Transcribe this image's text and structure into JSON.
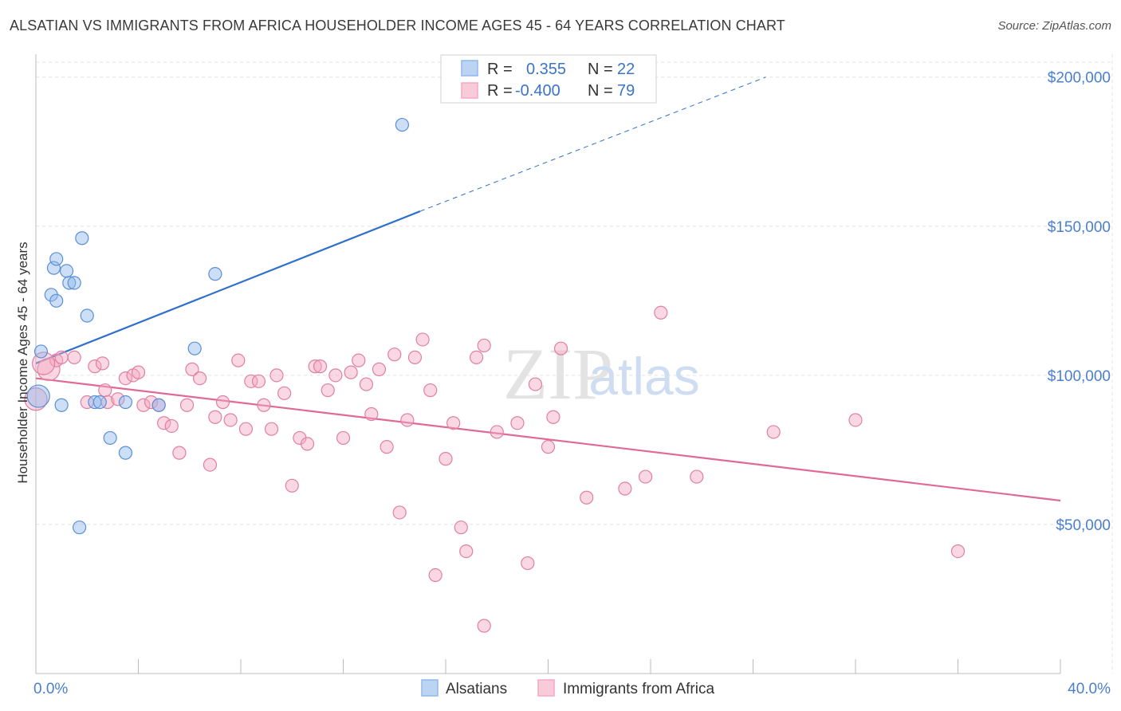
{
  "header": {
    "title": "ALSATIAN VS IMMIGRANTS FROM AFRICA HOUSEHOLDER INCOME AGES 45 - 64 YEARS CORRELATION CHART",
    "source": "Source: ZipAtlas.com"
  },
  "watermark": {
    "zip": "ZIP",
    "atlas": "atlas"
  },
  "legend_box": {
    "rows": [
      {
        "r_label": "R =",
        "r_value": "0.355",
        "n_label": "N =",
        "n_value": "22",
        "color": "#8fb8ea"
      },
      {
        "r_label": "R =",
        "r_value": "-0.400",
        "n_label": "N =",
        "n_value": "79",
        "color": "#f4a9c1"
      }
    ]
  },
  "chart_data": {
    "type": "scatter",
    "title": "ALSATIAN VS IMMIGRANTS FROM AFRICA HOUSEHOLDER INCOME AGES 45 - 64 YEARS CORRELATION CHART",
    "xlabel": "",
    "ylabel": "Householder Income Ages 45 - 64 years",
    "xlim": [
      0,
      40
    ],
    "ylim": [
      0,
      205000
    ],
    "x_tick_labels": [
      "0.0%",
      "40.0%"
    ],
    "y_ticks": [
      {
        "value": 50000,
        "label": "$50,000"
      },
      {
        "value": 100000,
        "label": "$100,000"
      },
      {
        "value": 150000,
        "label": "$150,000"
      },
      {
        "value": 200000,
        "label": "$200,000"
      }
    ],
    "grid": true,
    "legend_position": "bottom",
    "series": [
      {
        "name": "Alsatians",
        "color": "#8fb8ea",
        "stroke": "#5b8fd6",
        "trend": {
          "x1": 0,
          "y1": 104000,
          "x2": 15,
          "y2": 155000,
          "dash_to_x": 28.5,
          "dash_to_y": 200000,
          "color": "#2f6fcc"
        },
        "points": [
          [
            0.2,
            108000
          ],
          [
            0.6,
            127000
          ],
          [
            0.7,
            136000
          ],
          [
            0.8,
            139000
          ],
          [
            0.8,
            125000
          ],
          [
            1.2,
            135000
          ],
          [
            1.3,
            131000
          ],
          [
            1.5,
            131000
          ],
          [
            1.8,
            146000
          ],
          [
            2.0,
            120000
          ],
          [
            2.3,
            91000
          ],
          [
            2.5,
            91000
          ],
          [
            2.9,
            79000
          ],
          [
            3.5,
            74000
          ],
          [
            3.5,
            91000
          ],
          [
            4.8,
            90000
          ],
          [
            6.2,
            109000
          ],
          [
            7.0,
            134000
          ],
          [
            14.3,
            184000
          ],
          [
            1.7,
            49000
          ],
          [
            0.1,
            93000
          ],
          [
            1.0,
            90000
          ]
        ]
      },
      {
        "name": "Immigrants from Africa",
        "color": "#f4a9c1",
        "stroke": "#e17fa3",
        "trend": {
          "x1": 0,
          "y1": 99000,
          "x2": 40,
          "y2": 58000,
          "color": "#e06a96"
        },
        "points": [
          [
            0.0,
            92000
          ],
          [
            0.5,
            102000
          ],
          [
            0.8,
            105000
          ],
          [
            1.0,
            106000
          ],
          [
            1.5,
            106000
          ],
          [
            2.0,
            91000
          ],
          [
            2.3,
            103000
          ],
          [
            2.6,
            104000
          ],
          [
            2.7,
            95000
          ],
          [
            2.8,
            91000
          ],
          [
            3.2,
            92000
          ],
          [
            3.5,
            99000
          ],
          [
            3.8,
            100000
          ],
          [
            4.0,
            101000
          ],
          [
            4.2,
            90000
          ],
          [
            4.5,
            91000
          ],
          [
            4.8,
            90000
          ],
          [
            5.0,
            84000
          ],
          [
            5.3,
            83000
          ],
          [
            5.6,
            74000
          ],
          [
            5.9,
            90000
          ],
          [
            6.1,
            102000
          ],
          [
            6.4,
            99000
          ],
          [
            6.8,
            70000
          ],
          [
            7.0,
            86000
          ],
          [
            7.3,
            91000
          ],
          [
            7.6,
            85000
          ],
          [
            7.9,
            105000
          ],
          [
            8.2,
            82000
          ],
          [
            8.4,
            98000
          ],
          [
            8.7,
            98000
          ],
          [
            8.9,
            90000
          ],
          [
            9.2,
            82000
          ],
          [
            9.4,
            100000
          ],
          [
            9.7,
            94000
          ],
          [
            10.0,
            63000
          ],
          [
            10.3,
            79000
          ],
          [
            10.6,
            77000
          ],
          [
            10.9,
            103000
          ],
          [
            11.1,
            103000
          ],
          [
            11.4,
            95000
          ],
          [
            11.7,
            100000
          ],
          [
            12.0,
            79000
          ],
          [
            12.3,
            101000
          ],
          [
            12.6,
            105000
          ],
          [
            12.9,
            97000
          ],
          [
            13.1,
            87000
          ],
          [
            13.4,
            102000
          ],
          [
            13.7,
            76000
          ],
          [
            14.0,
            107000
          ],
          [
            14.2,
            54000
          ],
          [
            14.5,
            85000
          ],
          [
            14.8,
            106000
          ],
          [
            15.1,
            112000
          ],
          [
            15.4,
            95000
          ],
          [
            15.6,
            33000
          ],
          [
            16.0,
            72000
          ],
          [
            16.3,
            84000
          ],
          [
            16.6,
            49000
          ],
          [
            16.8,
            41000
          ],
          [
            17.2,
            106000
          ],
          [
            17.5,
            110000
          ],
          [
            17.5,
            16000
          ],
          [
            18.0,
            81000
          ],
          [
            18.8,
            84000
          ],
          [
            19.2,
            37000
          ],
          [
            19.5,
            97000
          ],
          [
            20.0,
            76000
          ],
          [
            20.2,
            86000
          ],
          [
            20.5,
            109000
          ],
          [
            21.5,
            59000
          ],
          [
            23.0,
            62000
          ],
          [
            23.8,
            66000
          ],
          [
            24.4,
            121000
          ],
          [
            25.8,
            66000
          ],
          [
            28.8,
            81000
          ],
          [
            32.0,
            85000
          ],
          [
            36.0,
            41000
          ],
          [
            0.3,
            104000
          ]
        ]
      }
    ]
  }
}
